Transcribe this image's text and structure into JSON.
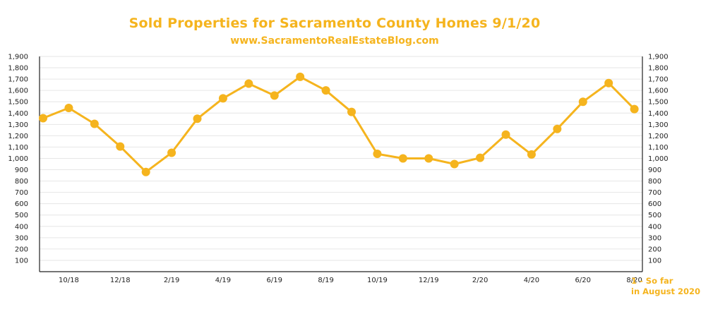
{
  "colors": {
    "accent": "#f5b41e",
    "axis": "#222222",
    "grid": "#e6e6e6",
    "text": "#222222"
  },
  "header": {
    "title": "Sold Properties for Sacramento County Homes 9/1/20",
    "subtitle": "www.SacramentoRealEstateBlog.com"
  },
  "footnote": {
    "line1": "1 - So far",
    "line2": "in August 2020"
  },
  "chart_data": {
    "type": "line",
    "x": [
      "9/18",
      "10/18",
      "11/18",
      "12/18",
      "1/19",
      "2/19",
      "3/19",
      "4/19",
      "5/19",
      "6/19",
      "7/19",
      "8/19",
      "9/19",
      "10/19",
      "11/19",
      "12/19",
      "1/20",
      "2/20",
      "3/20",
      "4/20",
      "5/20",
      "6/20",
      "7/20",
      "8/20"
    ],
    "values": [
      1355,
      1445,
      1305,
      1105,
      880,
      1050,
      1350,
      1530,
      1660,
      1555,
      1720,
      1600,
      1410,
      1040,
      1000,
      1000,
      950,
      1005,
      1210,
      1035,
      1260,
      1500,
      1665,
      1435
    ],
    "x_tick_labels": [
      "10/18",
      "12/18",
      "2/19",
      "4/19",
      "6/19",
      "8/19",
      "10/19",
      "12/19",
      "2/20",
      "4/20",
      "6/20",
      "8/20"
    ],
    "y_tick_labels": [
      "100",
      "200",
      "300",
      "400",
      "500",
      "600",
      "700",
      "800",
      "900",
      "1,000",
      "1,100",
      "1,200",
      "1,300",
      "1,400",
      "1,500",
      "1,600",
      "1,700",
      "1,800",
      "1,900"
    ],
    "y_ticks": [
      100,
      200,
      300,
      400,
      500,
      600,
      700,
      800,
      900,
      1000,
      1100,
      1200,
      1300,
      1400,
      1500,
      1600,
      1700,
      1800,
      1900
    ],
    "ylim": [
      0,
      1900
    ],
    "grid": true,
    "legend": "none"
  }
}
